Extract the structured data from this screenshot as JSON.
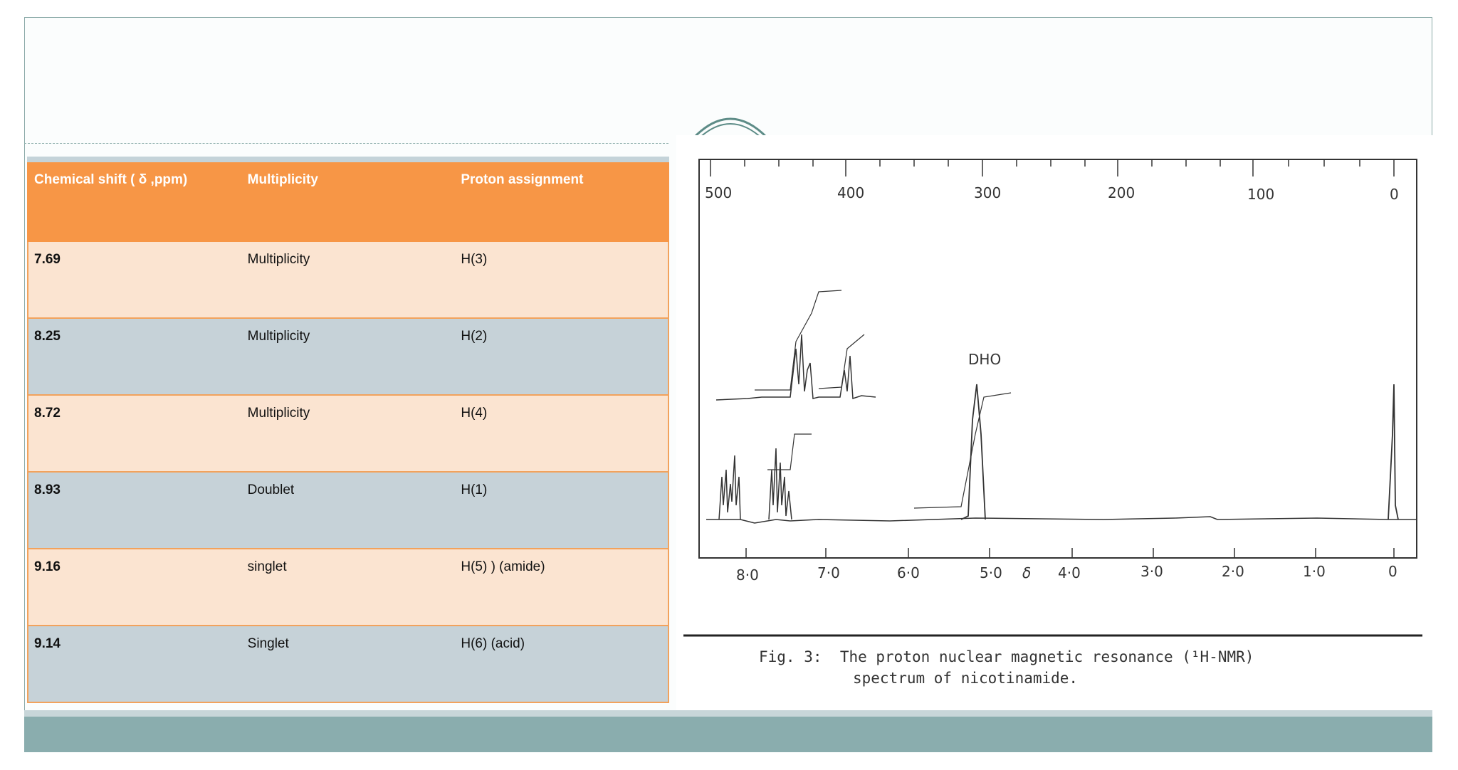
{
  "table": {
    "headers": [
      "Chemical shift ( δ ,ppm)",
      "Multiplicity",
      "Proton assignment"
    ],
    "rows": [
      [
        "7.69",
        "Multiplicity",
        "H(3)"
      ],
      [
        "8.25",
        "Multiplicity",
        "H(2)"
      ],
      [
        "8.72",
        "Multiplicity",
        "H(4)"
      ],
      [
        "8.93",
        "Doublet",
        "H(1)"
      ],
      [
        "9.16",
        "singlet",
        "H(5) )    (amide)"
      ],
      [
        "9.14",
        "Singlet",
        "H(6)    (acid)"
      ]
    ]
  },
  "figure": {
    "top_ticks": [
      "500",
      "400",
      "300",
      "200",
      "100",
      "0"
    ],
    "bottom_ticks": [
      "8·0",
      "7·0",
      "6·0",
      "5·0",
      "δ",
      "4·0",
      "3·0",
      "2·0",
      "1·0",
      "0"
    ],
    "peak_label": "DHO",
    "caption_prefix": "Fig. 3:",
    "caption_line1": "The proton nuclear magnetic resonance (¹H-NMR)",
    "caption_line2": "spectrum of nicotinamide."
  },
  "colors": {
    "header_bg": "#f79646",
    "row_light": "#fbe4d1",
    "row_blue": "#c6d2d8",
    "footer_bar": "#8aadae"
  }
}
